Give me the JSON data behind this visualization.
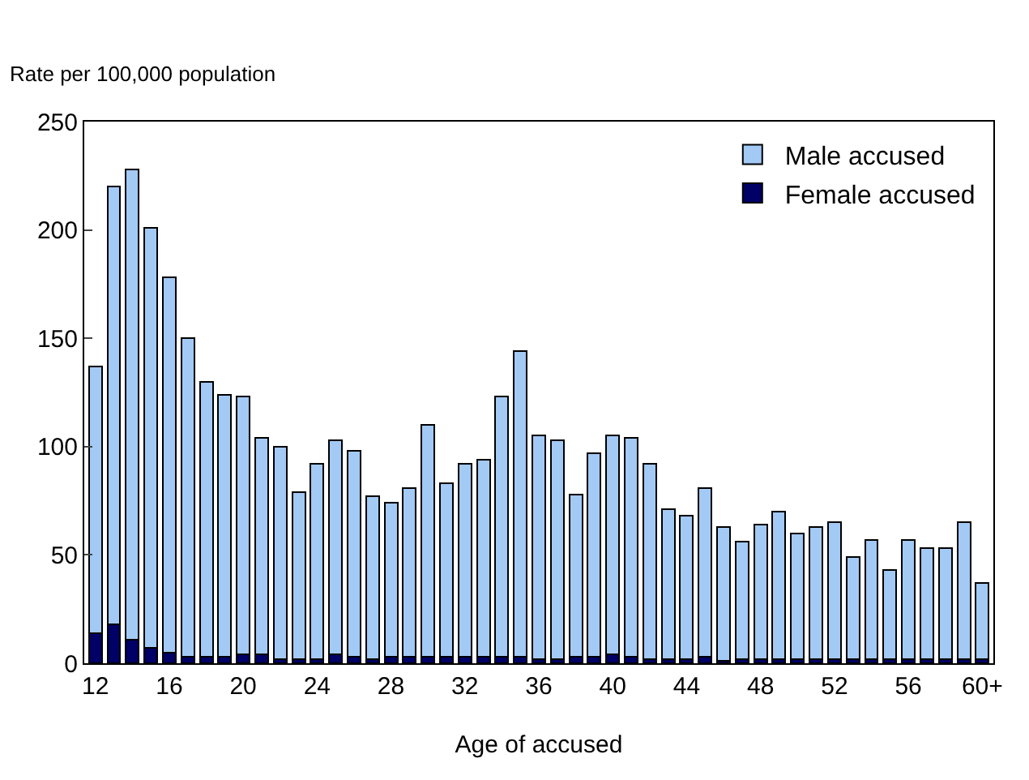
{
  "chart_data": {
    "type": "bar",
    "ylabel": "Rate per 100,000 population",
    "xlabel": "Age of accused",
    "categories": [
      "12",
      null,
      null,
      null,
      "16",
      null,
      null,
      null,
      "20",
      null,
      null,
      null,
      "24",
      null,
      null,
      null,
      "28",
      null,
      null,
      null,
      "32",
      null,
      null,
      null,
      "36",
      null,
      null,
      null,
      "40",
      null,
      null,
      null,
      "44",
      null,
      null,
      null,
      "48",
      null,
      null,
      null,
      "52",
      null,
      null,
      null,
      "56",
      null,
      null,
      null,
      "60+"
    ],
    "series": [
      {
        "name": "Female accused",
        "color": "#000066",
        "values": [
          14,
          18,
          11,
          7,
          5,
          3,
          3,
          3,
          4,
          4,
          2,
          2,
          2,
          4,
          3,
          2,
          3,
          3,
          3,
          3,
          3,
          3,
          3,
          3,
          2,
          2,
          3,
          3,
          4,
          3,
          2,
          2,
          2,
          3,
          1,
          2,
          2,
          2,
          2,
          2,
          2,
          2,
          2,
          2,
          2,
          2,
          2,
          2,
          2
        ]
      },
      {
        "name": "Male accused",
        "color": "#a3c9f5",
        "values": [
          123,
          202,
          217,
          194,
          173,
          147,
          127,
          121,
          119,
          100,
          98,
          77,
          90,
          99,
          95,
          75,
          71,
          78,
          107,
          80,
          89,
          91,
          120,
          141,
          103,
          101,
          75,
          94,
          101,
          101,
          90,
          69,
          66,
          78,
          62,
          54,
          62,
          68,
          58,
          61,
          63,
          47,
          55,
          41,
          55,
          51,
          51,
          63,
          35
        ]
      }
    ],
    "stacked": true,
    "ylim": [
      0,
      250
    ],
    "yticks": [
      0,
      50,
      100,
      150,
      200,
      250
    ],
    "grid": false,
    "legend": "top right"
  }
}
